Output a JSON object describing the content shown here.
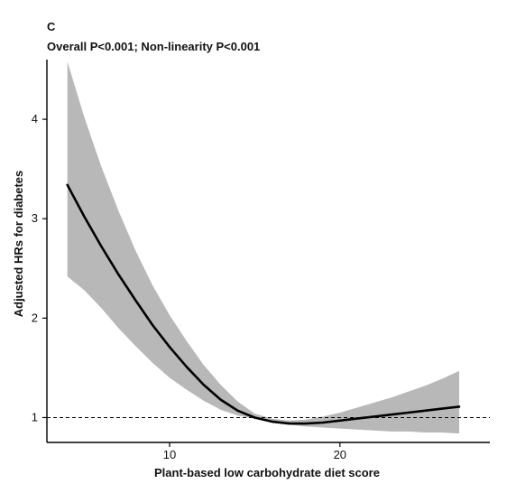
{
  "panel_label": "C",
  "chart_data": {
    "type": "line",
    "title": "Overall P<0.001; Non-linearity P<0.001",
    "xlabel": "Plant-based low carbohydrate diet score",
    "ylabel": "Adjusted HRs for diabetes",
    "xlim": [
      2.8,
      28.8
    ],
    "ylim": [
      0.75,
      4.6
    ],
    "x_ticks": [
      10,
      20
    ],
    "y_ticks": [
      1,
      2,
      3,
      4
    ],
    "grid": false,
    "reference_line": {
      "y": 1,
      "style": "dashed"
    },
    "series": [
      {
        "x": [
          4,
          5,
          6,
          7,
          8,
          9,
          10,
          11,
          12,
          13,
          14,
          15,
          16,
          17,
          18,
          19,
          20,
          21,
          22,
          23,
          24,
          25,
          26,
          27
        ],
        "y": [
          3.34,
          3.02,
          2.72,
          2.44,
          2.18,
          1.93,
          1.71,
          1.51,
          1.33,
          1.18,
          1.07,
          1.0,
          0.96,
          0.94,
          0.94,
          0.95,
          0.97,
          0.99,
          1.01,
          1.03,
          1.05,
          1.07,
          1.09,
          1.11
        ],
        "lower": [
          2.42,
          2.28,
          2.1,
          1.9,
          1.72,
          1.55,
          1.4,
          1.28,
          1.17,
          1.08,
          1.02,
          0.99,
          0.96,
          0.93,
          0.91,
          0.9,
          0.89,
          0.88,
          0.87,
          0.86,
          0.86,
          0.85,
          0.85,
          0.84
        ],
        "upper": [
          4.58,
          4.02,
          3.52,
          3.08,
          2.68,
          2.33,
          2.03,
          1.77,
          1.53,
          1.33,
          1.16,
          1.04,
          0.99,
          0.97,
          0.98,
          1.01,
          1.05,
          1.1,
          1.15,
          1.2,
          1.26,
          1.32,
          1.39,
          1.47
        ]
      }
    ],
    "colors": {
      "line": "#000000",
      "band": "#b8b8b8",
      "reference": "#000000"
    }
  }
}
